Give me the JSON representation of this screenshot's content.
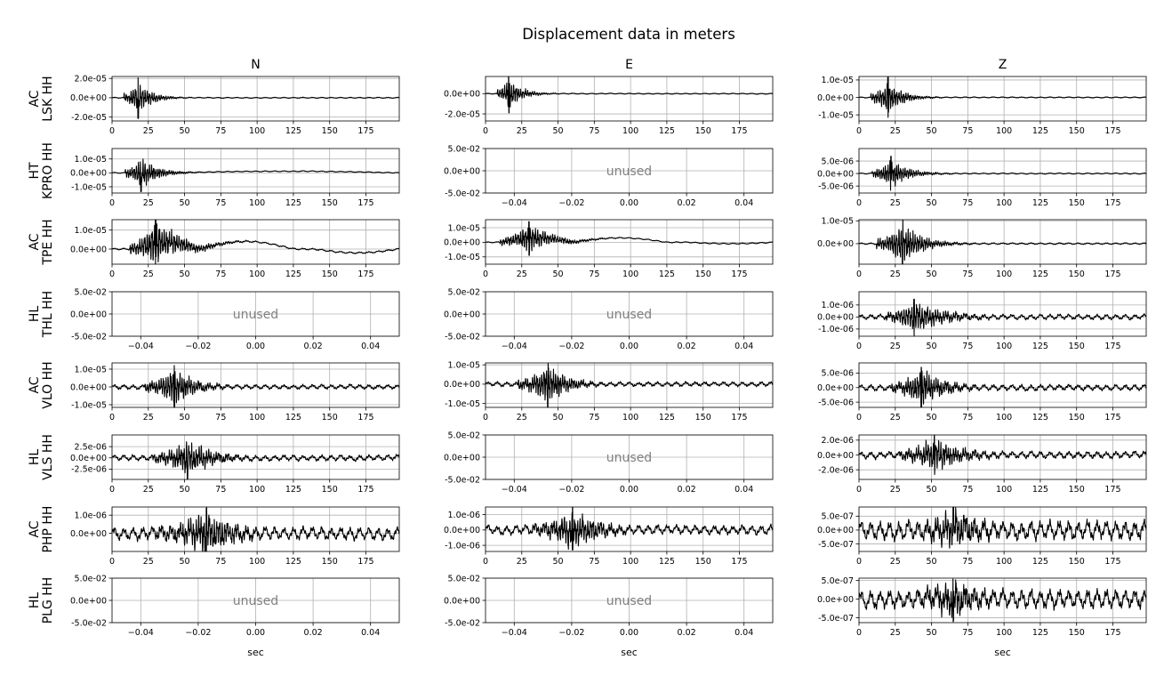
{
  "chart_data": {
    "type": "line",
    "title": "Displacement data in meters",
    "column_titles": [
      "N",
      "E",
      "Z"
    ],
    "row_labels": [
      [
        "AC",
        "LSK HH"
      ],
      [
        "HT",
        "KPRO HH"
      ],
      [
        "AC",
        "TPE HH"
      ],
      [
        "HL",
        "THL HH"
      ],
      [
        "AC",
        "VLO HH"
      ],
      [
        "HL",
        "VLS HH"
      ],
      [
        "AC",
        "PHP HH"
      ],
      [
        "HL",
        "PLG HH"
      ]
    ],
    "xlabel": "sec",
    "unused_label": "unused",
    "used_xlim": [
      0,
      198
    ],
    "used_xticks": [
      0,
      25,
      50,
      75,
      100,
      125,
      150,
      175
    ],
    "used_xtick_labels": [
      "0",
      "25",
      "50",
      "75",
      "100",
      "125",
      "150",
      "175"
    ],
    "unused_xlim": [
      -0.05,
      0.05
    ],
    "unused_xticks": [
      -0.04,
      -0.02,
      0,
      0.02,
      0.04
    ],
    "unused_xtick_labels": [
      "−0.04",
      "−0.02",
      "0.00",
      "0.02",
      "0.04"
    ],
    "unused_ylim": [
      -0.05,
      0.05
    ],
    "unused_yticks": [
      -0.05,
      0,
      0.05
    ],
    "unused_ytick_labels": [
      "-5.0e-02",
      "0.0e+00",
      "5.0e-02"
    ],
    "grid": true,
    "line_color": "#000000",
    "panels": [
      {
        "row": 0,
        "col": 0,
        "used": true,
        "ylim": [
          -2.4e-05,
          2.2e-05
        ],
        "yticks": [
          -2e-05,
          0,
          2e-05
        ],
        "ytick_labels": [
          "-2.0e-05",
          "0.0e+00",
          "2.0e-05"
        ],
        "onset": 8,
        "peak_t": 18,
        "amp": 2e-05,
        "decay": 9,
        "period": 1.6,
        "long_period": [],
        "noise": 0.015
      },
      {
        "row": 0,
        "col": 1,
        "used": true,
        "ylim": [
          -2.7e-05,
          1.7e-05
        ],
        "yticks": [
          -2e-05,
          0
        ],
        "ytick_labels": [
          "-2.0e-05",
          "0.0e+00"
        ],
        "onset": 8,
        "peak_t": 16,
        "amp": 1.8e-05,
        "decay": 9,
        "period": 1.6,
        "long_period": [],
        "noise": 0.015
      },
      {
        "row": 0,
        "col": 2,
        "used": true,
        "ylim": [
          -1.35e-05,
          1.2e-05
        ],
        "yticks": [
          -1e-05,
          0,
          1e-05
        ],
        "ytick_labels": [
          "-1.0e-05",
          "0.0e+00",
          "1.0e-05"
        ],
        "onset": 8,
        "peak_t": 20,
        "amp": 1.1e-05,
        "decay": 10,
        "period": 1.6,
        "long_period": [],
        "noise": 0.015
      },
      {
        "row": 1,
        "col": 0,
        "used": true,
        "ylim": [
          -1.45e-05,
          1.75e-05
        ],
        "yticks": [
          -1e-05,
          0,
          1e-05
        ],
        "ytick_labels": [
          "-1.0e-05",
          "0.0e+00",
          "1.0e-05"
        ],
        "onset": 9,
        "peak_t": 20,
        "amp": 1.3e-05,
        "decay": 11,
        "period": 1.5,
        "long_period": [
          [
            40,
            198,
            1.2e-06,
            160
          ]
        ],
        "noise": 0.015
      },
      {
        "row": 1,
        "col": 1,
        "used": false
      },
      {
        "row": 1,
        "col": 2,
        "used": true,
        "ylim": [
          -7.8e-06,
          1e-05
        ],
        "yticks": [
          -5e-06,
          0,
          5e-06
        ],
        "ytick_labels": [
          "-5.0e-06",
          "0.0e+00",
          "5.0e-06"
        ],
        "onset": 9,
        "peak_t": 22,
        "amp": 6.5e-06,
        "decay": 12,
        "period": 1.5,
        "long_period": [],
        "noise": 0.02
      },
      {
        "row": 2,
        "col": 0,
        "used": true,
        "ylim": [
          -8e-06,
          1.55e-05
        ],
        "yticks": [
          0,
          1e-05
        ],
        "ytick_labels": [
          "0.0e+00",
          "1.0e-05"
        ],
        "onset": 12,
        "peak_t": 30,
        "amp": 1.3e-05,
        "decay": 18,
        "period": 1.7,
        "long_period": [
          [
            15,
            60,
            3.5e-06,
            0
          ],
          [
            60,
            125,
            4e-06,
            0
          ],
          [
            140,
            198,
            -2e-06,
            0
          ]
        ],
        "noise": 0.02
      },
      {
        "row": 2,
        "col": 1,
        "used": true,
        "ylim": [
          -1.5e-05,
          1.55e-05
        ],
        "yticks": [
          -1e-05,
          0,
          1e-05
        ],
        "ytick_labels": [
          "-1.0e-05",
          "0.0e+00",
          "1.0e-05"
        ],
        "onset": 10,
        "peak_t": 30,
        "amp": 1.1e-05,
        "decay": 16,
        "period": 1.7,
        "long_period": [
          [
            10,
            60,
            3e-06,
            0
          ],
          [
            60,
            125,
            3e-06,
            0
          ],
          [
            140,
            198,
            -1e-06,
            0
          ]
        ],
        "noise": 0.02
      },
      {
        "row": 2,
        "col": 2,
        "used": true,
        "ylim": [
          -9e-06,
          1.05e-05
        ],
        "yticks": [
          0,
          1e-05
        ],
        "ytick_labels": [
          "0.0e+00",
          "1.0e-05"
        ],
        "onset": 12,
        "peak_t": 30,
        "amp": 1e-05,
        "decay": 14,
        "period": 1.6,
        "long_period": [],
        "noise": 0.02
      },
      {
        "row": 3,
        "col": 0,
        "used": false
      },
      {
        "row": 3,
        "col": 1,
        "used": false
      },
      {
        "row": 3,
        "col": 2,
        "used": true,
        "ylim": [
          -1.6e-06,
          2.1e-06
        ],
        "yticks": [
          -1e-06,
          0,
          1e-06
        ],
        "ytick_labels": [
          "-1.0e-06",
          "0.0e+00",
          "1.0e-06"
        ],
        "onset": 18,
        "peak_t": 38,
        "amp": 1.5e-06,
        "decay": 22,
        "period": 1.8,
        "long_period": [],
        "noise": 0.08
      },
      {
        "row": 4,
        "col": 0,
        "used": true,
        "ylim": [
          -1.15e-05,
          1.35e-05
        ],
        "yticks": [
          -1e-05,
          0,
          1e-05
        ],
        "ytick_labels": [
          "-1.0e-05",
          "0.0e+00",
          "1.0e-05"
        ],
        "onset": 22,
        "peak_t": 43,
        "amp": 1.2e-05,
        "decay": 14,
        "period": 1.6,
        "long_period": [],
        "noise": 0.06
      },
      {
        "row": 4,
        "col": 1,
        "used": true,
        "ylim": [
          -1.2e-05,
          1.1e-05
        ],
        "yticks": [
          -1e-05,
          0,
          1e-05
        ],
        "ytick_labels": [
          "-1.0e-05",
          "0.0e+00",
          "1.0e-05"
        ],
        "onset": 22,
        "peak_t": 43,
        "amp": 1.1e-05,
        "decay": 14,
        "period": 1.6,
        "long_period": [],
        "noise": 0.06
      },
      {
        "row": 4,
        "col": 2,
        "used": true,
        "ylim": [
          -6.8e-06,
          8.5e-06
        ],
        "yticks": [
          -5e-06,
          0,
          5e-06
        ],
        "ytick_labels": [
          "-5.0e-06",
          "0.0e+00",
          "5.0e-06"
        ],
        "onset": 22,
        "peak_t": 43,
        "amp": 7e-06,
        "decay": 16,
        "period": 1.6,
        "long_period": [],
        "noise": 0.08
      },
      {
        "row": 5,
        "col": 0,
        "used": true,
        "ylim": [
          -4.8e-06,
          5.1e-06
        ],
        "yticks": [
          -2.5e-06,
          0,
          2.5e-06
        ],
        "ytick_labels": [
          "-2.5e-06",
          "0.0e+00",
          "2.5e-06"
        ],
        "onset": 28,
        "peak_t": 52,
        "amp": 4.5e-06,
        "decay": 18,
        "period": 1.7,
        "long_period": [],
        "noise": 0.08
      },
      {
        "row": 5,
        "col": 1,
        "used": false
      },
      {
        "row": 5,
        "col": 2,
        "used": true,
        "ylim": [
          -3.3e-06,
          2.7e-06
        ],
        "yticks": [
          -2e-06,
          0,
          2e-06
        ],
        "ytick_labels": [
          "-2.0e-06",
          "0.0e+00",
          "2.0e-06"
        ],
        "onset": 28,
        "peak_t": 52,
        "amp": 2.6e-06,
        "decay": 20,
        "period": 1.7,
        "long_period": [],
        "noise": 0.1
      },
      {
        "row": 6,
        "col": 0,
        "used": true,
        "ylim": [
          -1e-06,
          1.45e-06
        ],
        "yticks": [
          0,
          1e-06
        ],
        "ytick_labels": [
          "0.0e+00",
          "1.0e-06"
        ],
        "onset": 30,
        "peak_t": 65,
        "amp": 1.3e-06,
        "decay": 22,
        "period": 1.8,
        "long_period": [],
        "noise": 0.15
      },
      {
        "row": 6,
        "col": 1,
        "used": true,
        "ylim": [
          -1.4e-06,
          1.5e-06
        ],
        "yticks": [
          -1e-06,
          0,
          1e-06
        ],
        "ytick_labels": [
          "-1.0e-06",
          "0.0e+00",
          "1.0e-06"
        ],
        "onset": 32,
        "peak_t": 60,
        "amp": 1.4e-06,
        "decay": 20,
        "period": 1.8,
        "long_period": [],
        "noise": 0.12
      },
      {
        "row": 6,
        "col": 2,
        "used": true,
        "ylim": [
          -7.7e-07,
          8.3e-07
        ],
        "yticks": [
          -5e-07,
          0,
          5e-07
        ],
        "ytick_labels": [
          "-5.0e-07",
          "0.0e+00",
          "5.0e-07"
        ],
        "onset": 33,
        "peak_t": 65,
        "amp": 7.5e-07,
        "decay": 22,
        "period": 1.8,
        "long_period": [],
        "noise": 0.25
      },
      {
        "row": 7,
        "col": 0,
        "used": false
      },
      {
        "row": 7,
        "col": 1,
        "used": false
      },
      {
        "row": 7,
        "col": 2,
        "used": true,
        "ylim": [
          -6.3e-07,
          5.6e-07
        ],
        "yticks": [
          -5e-07,
          0,
          5e-07
        ],
        "ytick_labels": [
          "-5.0e-07",
          "0.0e+00",
          "5.0e-07"
        ],
        "onset": 33,
        "peak_t": 65,
        "amp": 5.5e-07,
        "decay": 22,
        "period": 1.8,
        "long_period": [],
        "noise": 0.25
      }
    ]
  }
}
